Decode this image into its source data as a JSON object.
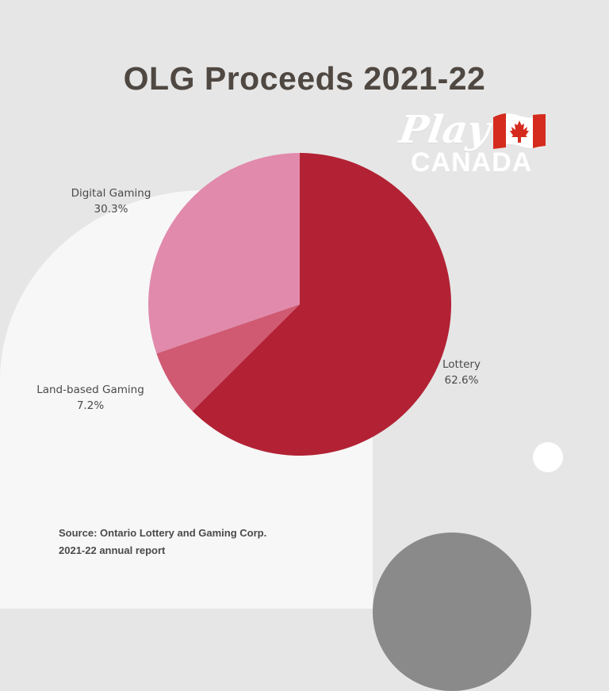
{
  "chart_data": {
    "type": "pie",
    "title": "OLG Proceeds 2021-22",
    "slices": [
      {
        "label": "Lottery",
        "value": 62.6,
        "value_label": "62.6%",
        "color": "#b22234"
      },
      {
        "label": "Land-based Gaming",
        "value": 7.2,
        "value_label": "7.2%",
        "color": "#cf5a72"
      },
      {
        "label": "Digital Gaming",
        "value": 30.3,
        "value_label": "30.3%",
        "color": "#e18aab"
      }
    ]
  },
  "logo": {
    "line1": "Play",
    "line2": "CANADA"
  },
  "source": {
    "line1": "Source: Ontario Lottery and Gaming Corp.",
    "line2": "2021-22 annual report"
  },
  "colors": {
    "background": "#e6e6e6",
    "panel": "#f7f7f7",
    "title": "#4f4741",
    "flag_red": "#d52b1e"
  }
}
